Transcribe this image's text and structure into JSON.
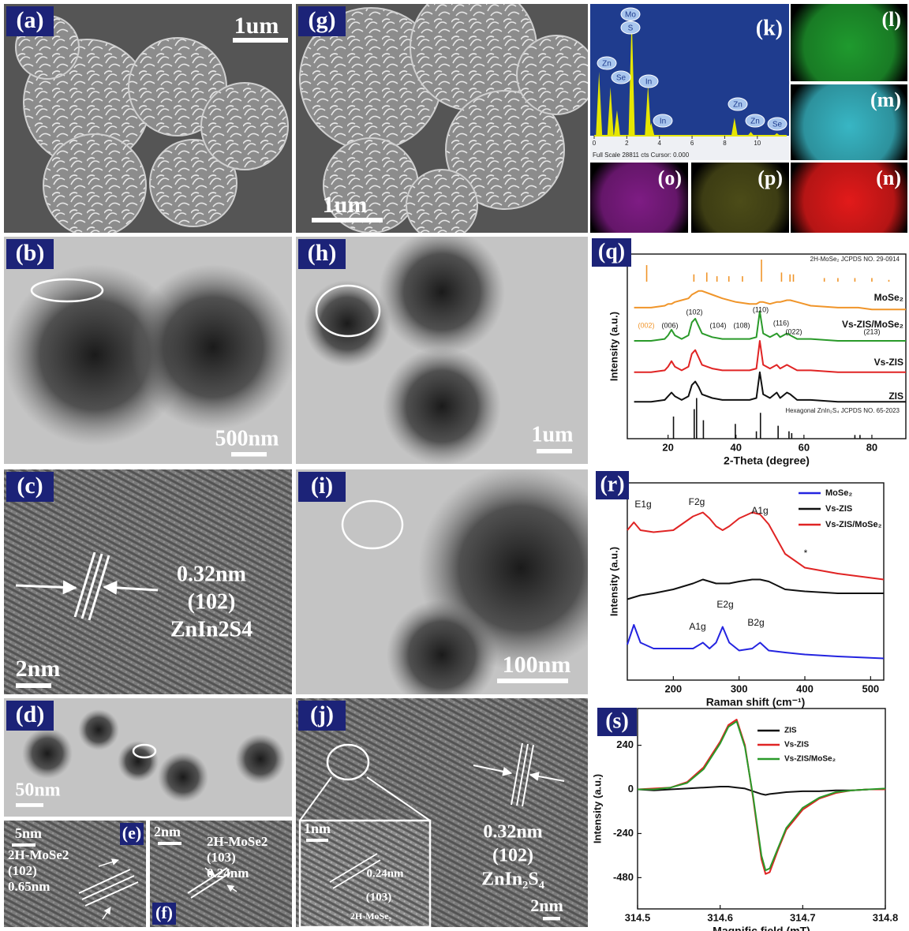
{
  "panels": {
    "a": {
      "label": "(a)",
      "scale_bar": "1um"
    },
    "g": {
      "label": "(g)",
      "scale_bar": "1um"
    },
    "b": {
      "label": "(b)",
      "scale_bar": "500nm"
    },
    "h": {
      "label": "(h)",
      "scale_bar": "1um"
    },
    "c": {
      "label": "(c)",
      "scale_bar": "2nm",
      "annotation": [
        "0.32nm",
        "(102)",
        "ZnIn2S4"
      ]
    },
    "i": {
      "label": "(i)",
      "scale_bar": "100nm"
    },
    "d": {
      "label": "(d)",
      "scale_bar": "50nm"
    },
    "e": {
      "label": "(e)",
      "scale_bar": "5nm",
      "annotation": [
        "2H-MoSe2",
        "(102)",
        "0.65nm"
      ]
    },
    "f": {
      "label": "(f)",
      "scale_bar": "2nm",
      "annotation": [
        "2H-MoSe2",
        "(103)",
        "0.24nm"
      ]
    },
    "j": {
      "label": "(j)",
      "scale_bar": "2nm",
      "inset_scale_bar": "1nm",
      "annotation": [
        "0.32nm",
        "(102)",
        "ZnIn₂S₄"
      ],
      "inset_annotation": [
        "0.24nm",
        "(103)",
        "2H-MoSe₂"
      ]
    },
    "l": {
      "label": "(l)",
      "color": "#1f9a2e"
    },
    "m": {
      "label": "(m)",
      "color": "#38b6c4"
    },
    "o": {
      "label": "(o)",
      "color": "#7e1c84"
    },
    "p": {
      "label": "(p)",
      "color": "#8a8a2c"
    },
    "n": {
      "label": "(n)",
      "color": "#e21a1a"
    }
  },
  "chart_data": [
    {
      "type": "spectrum",
      "label": "(k)",
      "footer": "Full Scale 28811 cts Cursor: 0.000",
      "xlim": [
        0,
        11.8
      ],
      "ylim": [
        0,
        100
      ],
      "xticks": [
        0,
        2,
        4,
        6,
        8,
        10
      ],
      "color": "#e6e600",
      "peaks": {
        "x": [
          0.3,
          1.0,
          1.4,
          2.3,
          3.3,
          3.5,
          8.6,
          9.6,
          11.2
        ],
        "values": [
          50,
          38,
          20,
          95,
          40,
          10,
          14,
          3,
          2
        ]
      },
      "peak_labels": [
        "Mo",
        "S",
        "Zn",
        "Se",
        "In",
        "In",
        "Zn",
        "Zn",
        "Se"
      ]
    },
    {
      "type": "line",
      "label": "(q)",
      "xlabel": "2-Theta (degree)",
      "ylabel": "Intensity (a.u.)",
      "xlim": [
        8,
        90
      ],
      "ylim": [
        0,
        10
      ],
      "xticks": [
        20,
        40,
        60,
        80
      ],
      "x": [
        10,
        15,
        19,
        20,
        21,
        22,
        24,
        26,
        27,
        28,
        29,
        30,
        33,
        36,
        40,
        44,
        46,
        47,
        48,
        50,
        52,
        53,
        55,
        56,
        58,
        62,
        70,
        76,
        80,
        90
      ],
      "series": [
        {
          "name": "MoSe₂",
          "color": "#f0952a",
          "values": [
            7.1,
            7.1,
            7.2,
            7.3,
            7.3,
            7.4,
            7.5,
            7.6,
            7.8,
            7.9,
            8.0,
            8.0,
            7.8,
            7.6,
            7.4,
            7.3,
            7.3,
            7.4,
            7.4,
            7.3,
            7.4,
            7.4,
            7.5,
            7.5,
            7.4,
            7.2,
            7.1,
            7.1,
            7.0,
            7.0
          ]
        },
        {
          "name": "Vs-ZIS/MoSe₂",
          "color": "#2a9a2a",
          "values": [
            5.3,
            5.3,
            5.4,
            5.6,
            5.9,
            5.6,
            5.4,
            5.6,
            6.3,
            6.5,
            6.1,
            5.7,
            5.5,
            5.4,
            5.4,
            5.4,
            5.5,
            6.9,
            5.7,
            5.5,
            5.7,
            5.5,
            5.7,
            5.6,
            5.4,
            5.4,
            5.3,
            5.3,
            5.3,
            5.3
          ]
        },
        {
          "name": "Vs-ZIS",
          "color": "#e02424",
          "values": [
            3.6,
            3.6,
            3.7,
            3.9,
            4.2,
            3.9,
            3.7,
            3.9,
            4.6,
            4.8,
            4.4,
            4.0,
            3.8,
            3.7,
            3.7,
            3.7,
            3.8,
            5.3,
            4.0,
            3.8,
            4.0,
            3.8,
            4.0,
            3.9,
            3.7,
            3.7,
            3.6,
            3.6,
            3.6,
            3.6
          ]
        },
        {
          "name": "ZIS",
          "color": "#111111",
          "values": [
            2.0,
            2.0,
            2.1,
            2.3,
            2.5,
            2.3,
            2.1,
            2.3,
            2.9,
            3.1,
            2.8,
            2.4,
            2.2,
            2.1,
            2.1,
            2.1,
            2.2,
            3.6,
            2.4,
            2.2,
            2.5,
            2.2,
            2.5,
            2.4,
            2.1,
            2.1,
            2.0,
            2.0,
            2.0,
            2.0
          ]
        }
      ],
      "references": [
        {
          "name": "2H-MoSe₂ JCPDS NO. 29-0914",
          "color": "#f0952a",
          "x": [
            13.7,
            27.6,
            31.4,
            34.4,
            37.9,
            41.9,
            47.5,
            53.4,
            55.9,
            56.9,
            66,
            70,
            75,
            80,
            85
          ],
          "values": [
            9.4,
            8.9,
            9.0,
            8.8,
            8.8,
            8.8,
            9.7,
            9.0,
            8.9,
            8.9,
            8.7,
            8.7,
            8.7,
            8.7,
            8.6
          ]
        },
        {
          "name": "Hexagonal ZnIn₂S₄ JCPDS NO. 65-2023",
          "color": "#111111",
          "x": [
            21.6,
            27.7,
            28.4,
            30.4,
            39.8,
            46,
            47.2,
            52.4,
            55.6,
            56.4,
            75,
            76.5
          ],
          "values": [
            1.2,
            1.6,
            2.2,
            1.0,
            0.8,
            0.4,
            1.4,
            0.7,
            0.4,
            0.3,
            0.2,
            0.2
          ]
        }
      ],
      "annotations": [
        "(002)",
        "(006)",
        "(102)",
        "(104)",
        "(108)",
        "(110)",
        "(116)",
        "(022)",
        "(213)"
      ]
    },
    {
      "type": "line",
      "label": "(r)",
      "xlabel": "Raman shift (cm⁻¹)",
      "ylabel": "Intensity (a.u.)",
      "xlim": [
        130,
        520
      ],
      "ylim": [
        0,
        10
      ],
      "xticks": [
        200,
        300,
        400,
        500
      ],
      "x": [
        130,
        140,
        150,
        170,
        200,
        230,
        245,
        255,
        265,
        275,
        285,
        300,
        320,
        332,
        345,
        370,
        400,
        450,
        520
      ],
      "series": [
        {
          "name": "MoSe₂",
          "color": "#2424e0",
          "values": [
            1.8,
            2.8,
            1.9,
            1.6,
            1.6,
            1.6,
            1.9,
            1.6,
            1.9,
            2.7,
            1.9,
            1.5,
            1.6,
            1.9,
            1.5,
            1.4,
            1.3,
            1.2,
            1.1
          ]
        },
        {
          "name": "Vs-ZIS",
          "color": "#111111",
          "values": [
            4.1,
            4.2,
            4.3,
            4.4,
            4.6,
            4.9,
            5.1,
            5.0,
            4.9,
            4.9,
            4.9,
            5.0,
            5.1,
            5.1,
            5.0,
            4.6,
            4.5,
            4.4,
            4.4
          ]
        },
        {
          "name": "Vs-ZIS/MoSe₂",
          "color": "#e02424",
          "values": [
            7.6,
            8.0,
            7.6,
            7.5,
            7.6,
            8.3,
            8.5,
            8.2,
            7.8,
            7.6,
            7.8,
            8.2,
            8.5,
            8.4,
            7.9,
            6.4,
            5.7,
            5.4,
            5.1
          ]
        }
      ],
      "annotations": [
        "E1g",
        "F2g",
        "A1g",
        "*",
        "A1g",
        "E2g",
        "B2g"
      ]
    },
    {
      "type": "line",
      "label": "(s)",
      "xlabel": "Magnific field (mT)",
      "ylabel": "Intensity (a.u.)",
      "xlim": [
        314.5,
        314.8
      ],
      "ylim": [
        -650,
        440
      ],
      "xticks": [
        314.5,
        314.6,
        314.7,
        314.8
      ],
      "yticks": [
        -480,
        -240,
        0,
        240
      ],
      "x": [
        314.5,
        314.52,
        314.54,
        314.56,
        314.58,
        314.6,
        314.61,
        314.62,
        314.63,
        314.64,
        314.65,
        314.655,
        314.66,
        314.67,
        314.68,
        314.7,
        314.72,
        314.74,
        314.76,
        314.78,
        314.8
      ],
      "series": [
        {
          "name": "ZIS",
          "color": "#111111",
          "values": [
            0,
            -5,
            0,
            5,
            10,
            15,
            15,
            10,
            5,
            -10,
            -25,
            -30,
            -25,
            -20,
            -15,
            -10,
            -10,
            -5,
            -5,
            0,
            0
          ]
        },
        {
          "name": "Vs-ZIS",
          "color": "#e02424",
          "values": [
            0,
            5,
            10,
            40,
            120,
            260,
            350,
            380,
            240,
            -50,
            -380,
            -460,
            -450,
            -330,
            -220,
            -110,
            -50,
            -20,
            -5,
            0,
            0
          ]
        },
        {
          "name": "Vs-ZIS/MoSe₂",
          "color": "#2a9a2a",
          "values": [
            0,
            0,
            10,
            35,
            110,
            250,
            340,
            370,
            230,
            -40,
            -360,
            -440,
            -430,
            -320,
            -210,
            -100,
            -45,
            -15,
            -5,
            0,
            5
          ]
        }
      ]
    }
  ]
}
